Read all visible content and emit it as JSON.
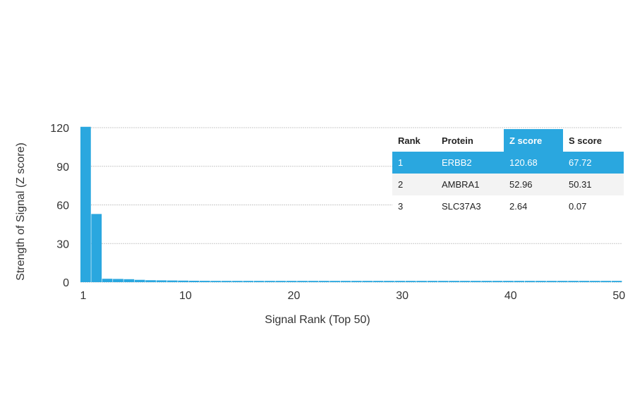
{
  "chart_data": {
    "type": "bar",
    "xlabel": "Signal Rank (Top 50)",
    "ylabel": "Strength of Signal (Z score)",
    "ylim": [
      0,
      120
    ],
    "yticks": [
      "0",
      "30",
      "60",
      "90",
      "120"
    ],
    "xticks": [
      "1",
      "10",
      "20",
      "30",
      "40",
      "50"
    ],
    "grid": true,
    "bar_color": "#2aa7df",
    "x": [
      1,
      2,
      3,
      4,
      5,
      6,
      7,
      8,
      9,
      10,
      11,
      12,
      13,
      14,
      15,
      16,
      17,
      18,
      19,
      20,
      21,
      22,
      23,
      24,
      25,
      26,
      27,
      28,
      29,
      30,
      31,
      32,
      33,
      34,
      35,
      36,
      37,
      38,
      39,
      40,
      41,
      42,
      43,
      44,
      45,
      46,
      47,
      48,
      49,
      50
    ],
    "values": [
      120.68,
      52.96,
      2.64,
      2.5,
      2.3,
      1.8,
      1.5,
      1.4,
      1.3,
      1.2,
      1.1,
      1.05,
      1.0,
      1.0,
      1.0,
      1.0,
      1.0,
      1.0,
      1.0,
      1.0,
      1.0,
      1.0,
      1.0,
      1.0,
      1.0,
      1.0,
      1.0,
      1.0,
      1.0,
      1.0,
      1.0,
      1.0,
      1.0,
      1.0,
      1.0,
      1.0,
      1.0,
      1.0,
      1.0,
      1.0,
      1.0,
      1.0,
      1.0,
      1.0,
      1.0,
      1.0,
      1.0,
      1.0,
      1.0,
      1.0
    ]
  },
  "table": {
    "headers": [
      "Rank",
      "Protein",
      "Z score",
      "S score"
    ],
    "rows": [
      [
        "1",
        "ERBB2",
        "120.68",
        "67.72"
      ],
      [
        "2",
        "AMBRA1",
        "52.96",
        "50.31"
      ],
      [
        "3",
        "SLC37A3",
        "2.64",
        "0.07"
      ]
    ],
    "highlight_color": "#2aa7df"
  }
}
